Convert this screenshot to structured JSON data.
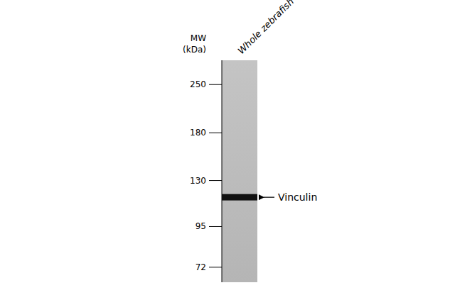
{
  "chart_data": {
    "type": "gel",
    "categories": [
      "Whole zebrafish"
    ],
    "series": [
      {
        "name": "Vinculin",
        "color": "#111111",
        "values": [
          116
        ]
      }
    ],
    "ylabel": "MW (kDa)",
    "ylim": [
      65,
      295
    ],
    "yticks": [
      250,
      180,
      130,
      95,
      72
    ],
    "log": "y"
  }
}
